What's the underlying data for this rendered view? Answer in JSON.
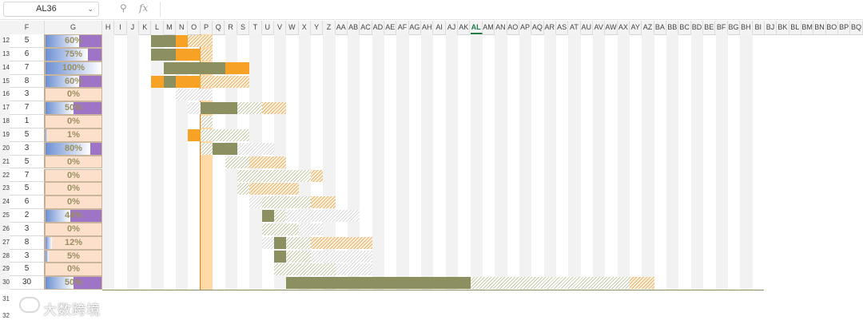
{
  "formula_bar": {
    "name_box": "AL36",
    "zoom_icon": "zoom-icon",
    "fx_label": "fx",
    "formula": ""
  },
  "columns": [
    "F",
    "G",
    "H",
    "I",
    "J",
    "K",
    "L",
    "M",
    "N",
    "O",
    "P",
    "Q",
    "R",
    "S",
    "T",
    "U",
    "V",
    "W",
    "X",
    "Y",
    "Z",
    "AA",
    "AB",
    "AC",
    "AD",
    "AE",
    "AF",
    "AG",
    "AH",
    "AI",
    "AJ",
    "AK",
    "AL",
    "AM",
    "AN",
    "AO",
    "AP",
    "AQ",
    "AR",
    "AS",
    "AT",
    "AU",
    "AV",
    "AW",
    "AX",
    "AY",
    "AZ",
    "BA",
    "BB",
    "BC",
    "BD",
    "BE",
    "BF",
    "BG",
    "BH",
    "BI",
    "BJ",
    "BK",
    "BL",
    "BM",
    "BN",
    "BO",
    "BP",
    "BQ"
  ],
  "selected_column": "AL",
  "rows": [
    {
      "num": "12",
      "f": "5",
      "g": "60%",
      "pct": 60
    },
    {
      "num": "13",
      "f": "6",
      "g": "75%",
      "pct": 75
    },
    {
      "num": "14",
      "f": "7",
      "g": "100%",
      "pct": 100
    },
    {
      "num": "15",
      "f": "8",
      "g": "60%",
      "pct": 60
    },
    {
      "num": "16",
      "f": "3",
      "g": "0%",
      "pct": 0
    },
    {
      "num": "17",
      "f": "7",
      "g": "50%",
      "pct": 50
    },
    {
      "num": "18",
      "f": "1",
      "g": "0%",
      "pct": 0
    },
    {
      "num": "19",
      "f": "5",
      "g": "1%",
      "pct": 1
    },
    {
      "num": "20",
      "f": "3",
      "g": "80%",
      "pct": 80
    },
    {
      "num": "21",
      "f": "5",
      "g": "0%",
      "pct": 0
    },
    {
      "num": "22",
      "f": "7",
      "g": "0%",
      "pct": 0
    },
    {
      "num": "23",
      "f": "5",
      "g": "0%",
      "pct": 0
    },
    {
      "num": "24",
      "f": "6",
      "g": "0%",
      "pct": 0
    },
    {
      "num": "25",
      "f": "2",
      "g": "44%",
      "pct": 44
    },
    {
      "num": "26",
      "f": "3",
      "g": "0%",
      "pct": 0
    },
    {
      "num": "27",
      "f": "8",
      "g": "12%",
      "pct": 12
    },
    {
      "num": "28",
      "f": "3",
      "g": "5%",
      "pct": 5
    },
    {
      "num": "29",
      "f": "5",
      "g": "0%",
      "pct": 0
    },
    {
      "num": "30",
      "f": "30",
      "g": "50%",
      "pct": 50
    }
  ],
  "extra_rows": [
    "31",
    "32"
  ],
  "gantt": [
    [
      {
        "c": "L",
        "n": 2,
        "t": "olive"
      },
      {
        "c": "N",
        "n": 1,
        "t": "orange"
      },
      {
        "c": "O",
        "n": 2,
        "t": "hatcho"
      }
    ],
    [
      {
        "c": "L",
        "n": 2,
        "t": "olive"
      },
      {
        "c": "N",
        "n": 2,
        "t": "orange"
      },
      {
        "c": "P",
        "n": 1,
        "t": "hatcho"
      }
    ],
    [
      {
        "c": "M",
        "n": 5,
        "t": "olive"
      },
      {
        "c": "R",
        "n": 2,
        "t": "orange"
      }
    ],
    [
      {
        "c": "L",
        "n": 1,
        "t": "orange"
      },
      {
        "c": "M",
        "n": 1,
        "t": "olive"
      },
      {
        "c": "N",
        "n": 2,
        "t": "orange"
      },
      {
        "c": "P",
        "n": 4,
        "t": "hatcho"
      }
    ],
    [
      {
        "c": "N",
        "n": 3,
        "t": "hatchn"
      }
    ],
    [
      {
        "c": "O",
        "n": 1,
        "t": "hatchn"
      },
      {
        "c": "P",
        "n": 3,
        "t": "olive"
      },
      {
        "c": "S",
        "n": 2,
        "t": "hatchg"
      },
      {
        "c": "U",
        "n": 2,
        "t": "hatcho"
      }
    ],
    [
      {
        "c": "P",
        "n": 1,
        "t": "hatchg"
      }
    ],
    [
      {
        "c": "O",
        "n": 1,
        "t": "orange"
      },
      {
        "c": "P",
        "n": 4,
        "t": "hatchg"
      }
    ],
    [
      {
        "c": "P",
        "n": 1,
        "t": "hatchg"
      },
      {
        "c": "Q",
        "n": 2,
        "t": "olive"
      },
      {
        "c": "S",
        "n": 3,
        "t": "hatchn"
      }
    ],
    [
      {
        "c": "R",
        "n": 2,
        "t": "hatchg"
      },
      {
        "c": "T",
        "n": 3,
        "t": "hatcho"
      }
    ],
    [
      {
        "c": "S",
        "n": 6,
        "t": "hatchg"
      },
      {
        "c": "Y",
        "n": 1,
        "t": "hatcho"
      }
    ],
    [
      {
        "c": "S",
        "n": 1,
        "t": "hatchg"
      },
      {
        "c": "T",
        "n": 4,
        "t": "hatcho"
      }
    ],
    [
      {
        "c": "T",
        "n": 1,
        "t": "hatchn"
      },
      {
        "c": "U",
        "n": 4,
        "t": "hatchg"
      },
      {
        "c": "Y",
        "n": 2,
        "t": "hatcho"
      }
    ],
    [
      {
        "c": "U",
        "n": 1,
        "t": "olive"
      },
      {
        "c": "V",
        "n": 1,
        "t": "hatchg"
      },
      {
        "c": "W",
        "n": 6,
        "t": "hatchn"
      }
    ],
    [
      {
        "c": "U",
        "n": 3,
        "t": "hatchg"
      },
      {
        "c": "X",
        "n": 2,
        "t": "hatchn"
      }
    ],
    [
      {
        "c": "U",
        "n": 1,
        "t": "hatchn"
      },
      {
        "c": "V",
        "n": 1,
        "t": "olive"
      },
      {
        "c": "W",
        "n": 2,
        "t": "hatchg"
      },
      {
        "c": "Y",
        "n": 5,
        "t": "hatcho"
      }
    ],
    [
      {
        "c": "V",
        "n": 1,
        "t": "olive"
      },
      {
        "c": "W",
        "n": 2,
        "t": "hatchg"
      },
      {
        "c": "Y",
        "n": 5,
        "t": "hatchn"
      }
    ],
    [
      {
        "c": "V",
        "n": 5,
        "t": "hatchg"
      },
      {
        "c": "AA",
        "n": 3,
        "t": "hatchn"
      }
    ],
    [
      {
        "c": "W",
        "n": 15,
        "t": "olive"
      },
      {
        "c": "AL",
        "n": 13,
        "t": "hatchg"
      },
      {
        "c": "AY",
        "n": 2,
        "t": "hatcho"
      }
    ]
  ],
  "watermark": "大数跨境",
  "colors": {
    "olive": "#8c8f5f",
    "orange": "#f7a224",
    "peach": "#fde0cc",
    "today": "#ffd9a6"
  }
}
